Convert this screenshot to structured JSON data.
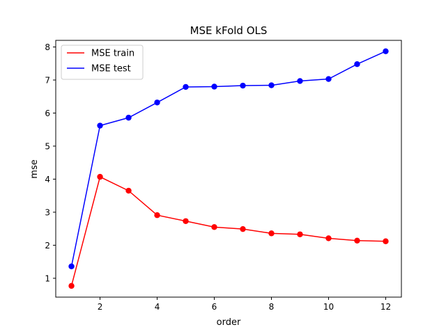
{
  "chart_data": {
    "type": "line",
    "title": "MSE kFold OLS",
    "xlabel": "order",
    "ylabel": "mse",
    "x": [
      1,
      2,
      3,
      4,
      5,
      6,
      7,
      8,
      9,
      10,
      11,
      12
    ],
    "xlim": [
      0.45,
      12.55
    ],
    "ylim": [
      0.43,
      8.2
    ],
    "xticks": [
      2,
      4,
      6,
      8,
      10,
      12
    ],
    "yticks": [
      1,
      2,
      3,
      4,
      5,
      6,
      7,
      8
    ],
    "grid": false,
    "legend_position": "top-left",
    "series": [
      {
        "name": "MSE train",
        "color": "#ff0000",
        "marker": "circle",
        "values": [
          0.77,
          4.07,
          3.65,
          2.91,
          2.73,
          2.55,
          2.49,
          2.36,
          2.33,
          2.21,
          2.14,
          2.12
        ]
      },
      {
        "name": "MSE test",
        "color": "#0000ff",
        "marker": "circle",
        "values": [
          1.36,
          5.62,
          5.86,
          6.32,
          6.79,
          6.8,
          6.83,
          6.84,
          6.97,
          7.03,
          7.48,
          7.87
        ]
      }
    ]
  }
}
